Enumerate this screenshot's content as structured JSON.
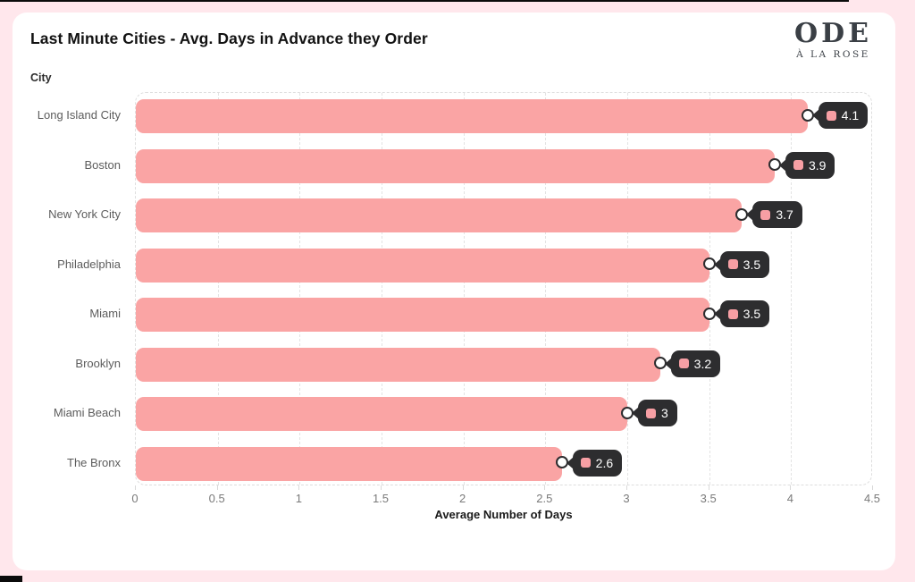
{
  "page": {
    "background_color": "#FFE7EC",
    "card_color": "#FFFFFF"
  },
  "header": {
    "title": "Last Minute Cities - Avg. Days in Advance they Order"
  },
  "logo": {
    "line1": "ODE",
    "line2": "À LA ROSE"
  },
  "chart_data": {
    "type": "bar",
    "orientation": "horizontal",
    "title": "Last Minute Cities - Avg. Days in Advance they Order",
    "xlabel": "Average Number of Days",
    "ylabel": "City",
    "categories": [
      "Long Island City",
      "Boston",
      "New York City",
      "Philadelphia",
      "Miami",
      "Brooklyn",
      "Miami Beach",
      "The Bronx"
    ],
    "values": [
      4.1,
      3.9,
      3.7,
      3.5,
      3.5,
      3.2,
      3,
      2.6
    ],
    "value_labels": [
      "4.1",
      "3.9",
      "3.7",
      "3.5",
      "3.5",
      "3.2",
      "3",
      "2.6"
    ],
    "xlim": [
      0,
      4.5
    ],
    "xticks": [
      0,
      0.5,
      1,
      1.5,
      2,
      2.5,
      3,
      3.5,
      4,
      4.5
    ],
    "xtick_labels": [
      "0",
      "0.5",
      "1",
      "1.5",
      "2",
      "2.5",
      "3",
      "3.5",
      "4",
      "4.5"
    ],
    "grid": "vertical-dashed",
    "legend": "none",
    "bar_color": "#FAA4A4",
    "tag_background": "#2D2D2F",
    "tag_text_color": "#FFFFFF",
    "tag_swatch_color": "#F79FA4"
  }
}
